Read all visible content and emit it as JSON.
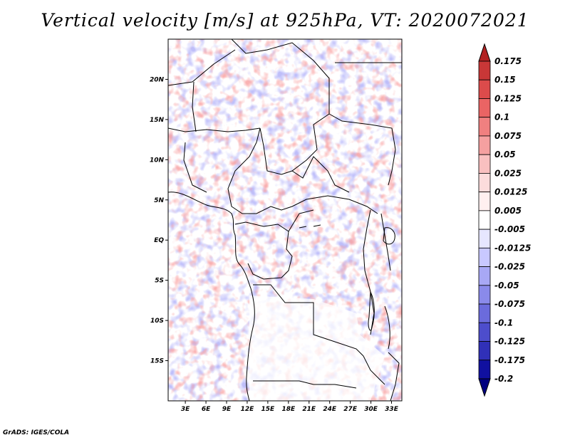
{
  "title": "Vertical velocity [m/s] at 925hPa, VT: 2020072021",
  "credit": "GrADS: IGES/COLA",
  "map": {
    "lat_labels": [
      "20N",
      "15N",
      "10N",
      "5N",
      "EQ",
      "5S",
      "10S",
      "15S"
    ],
    "lat_values": [
      20,
      15,
      10,
      5,
      0,
      -5,
      -10,
      -15
    ],
    "lon_labels": [
      "3E",
      "6E",
      "9E",
      "12E",
      "15E",
      "18E",
      "21E",
      "24E",
      "27E",
      "30E",
      "33E"
    ],
    "lon_values": [
      3,
      6,
      9,
      12,
      15,
      18,
      21,
      24,
      27,
      30,
      33
    ],
    "lon_range": [
      0.5,
      34.5
    ],
    "lat_range": [
      -20,
      25
    ]
  },
  "colorbar": {
    "labels": [
      "0.175",
      "0.15",
      "0.125",
      "0.1",
      "0.075",
      "0.05",
      "0.025",
      "0.0125",
      "0.005",
      "-0.005",
      "-0.0125",
      "-0.025",
      "-0.05",
      "-0.075",
      "-0.1",
      "-0.125",
      "-0.175",
      "-0.2"
    ],
    "colors": [
      "#b22222",
      "#c83737",
      "#dc4b4b",
      "#ea6464",
      "#f08080",
      "#f5a0a0",
      "#f9c0c0",
      "#fcdcdc",
      "#fff0f0",
      "#ffffff",
      "#e6e6ff",
      "#c8c8ff",
      "#a8a8f5",
      "#8a8aea",
      "#6b6bdc",
      "#4d4dcc",
      "#3030b8",
      "#1010a0",
      "#000080"
    ]
  }
}
